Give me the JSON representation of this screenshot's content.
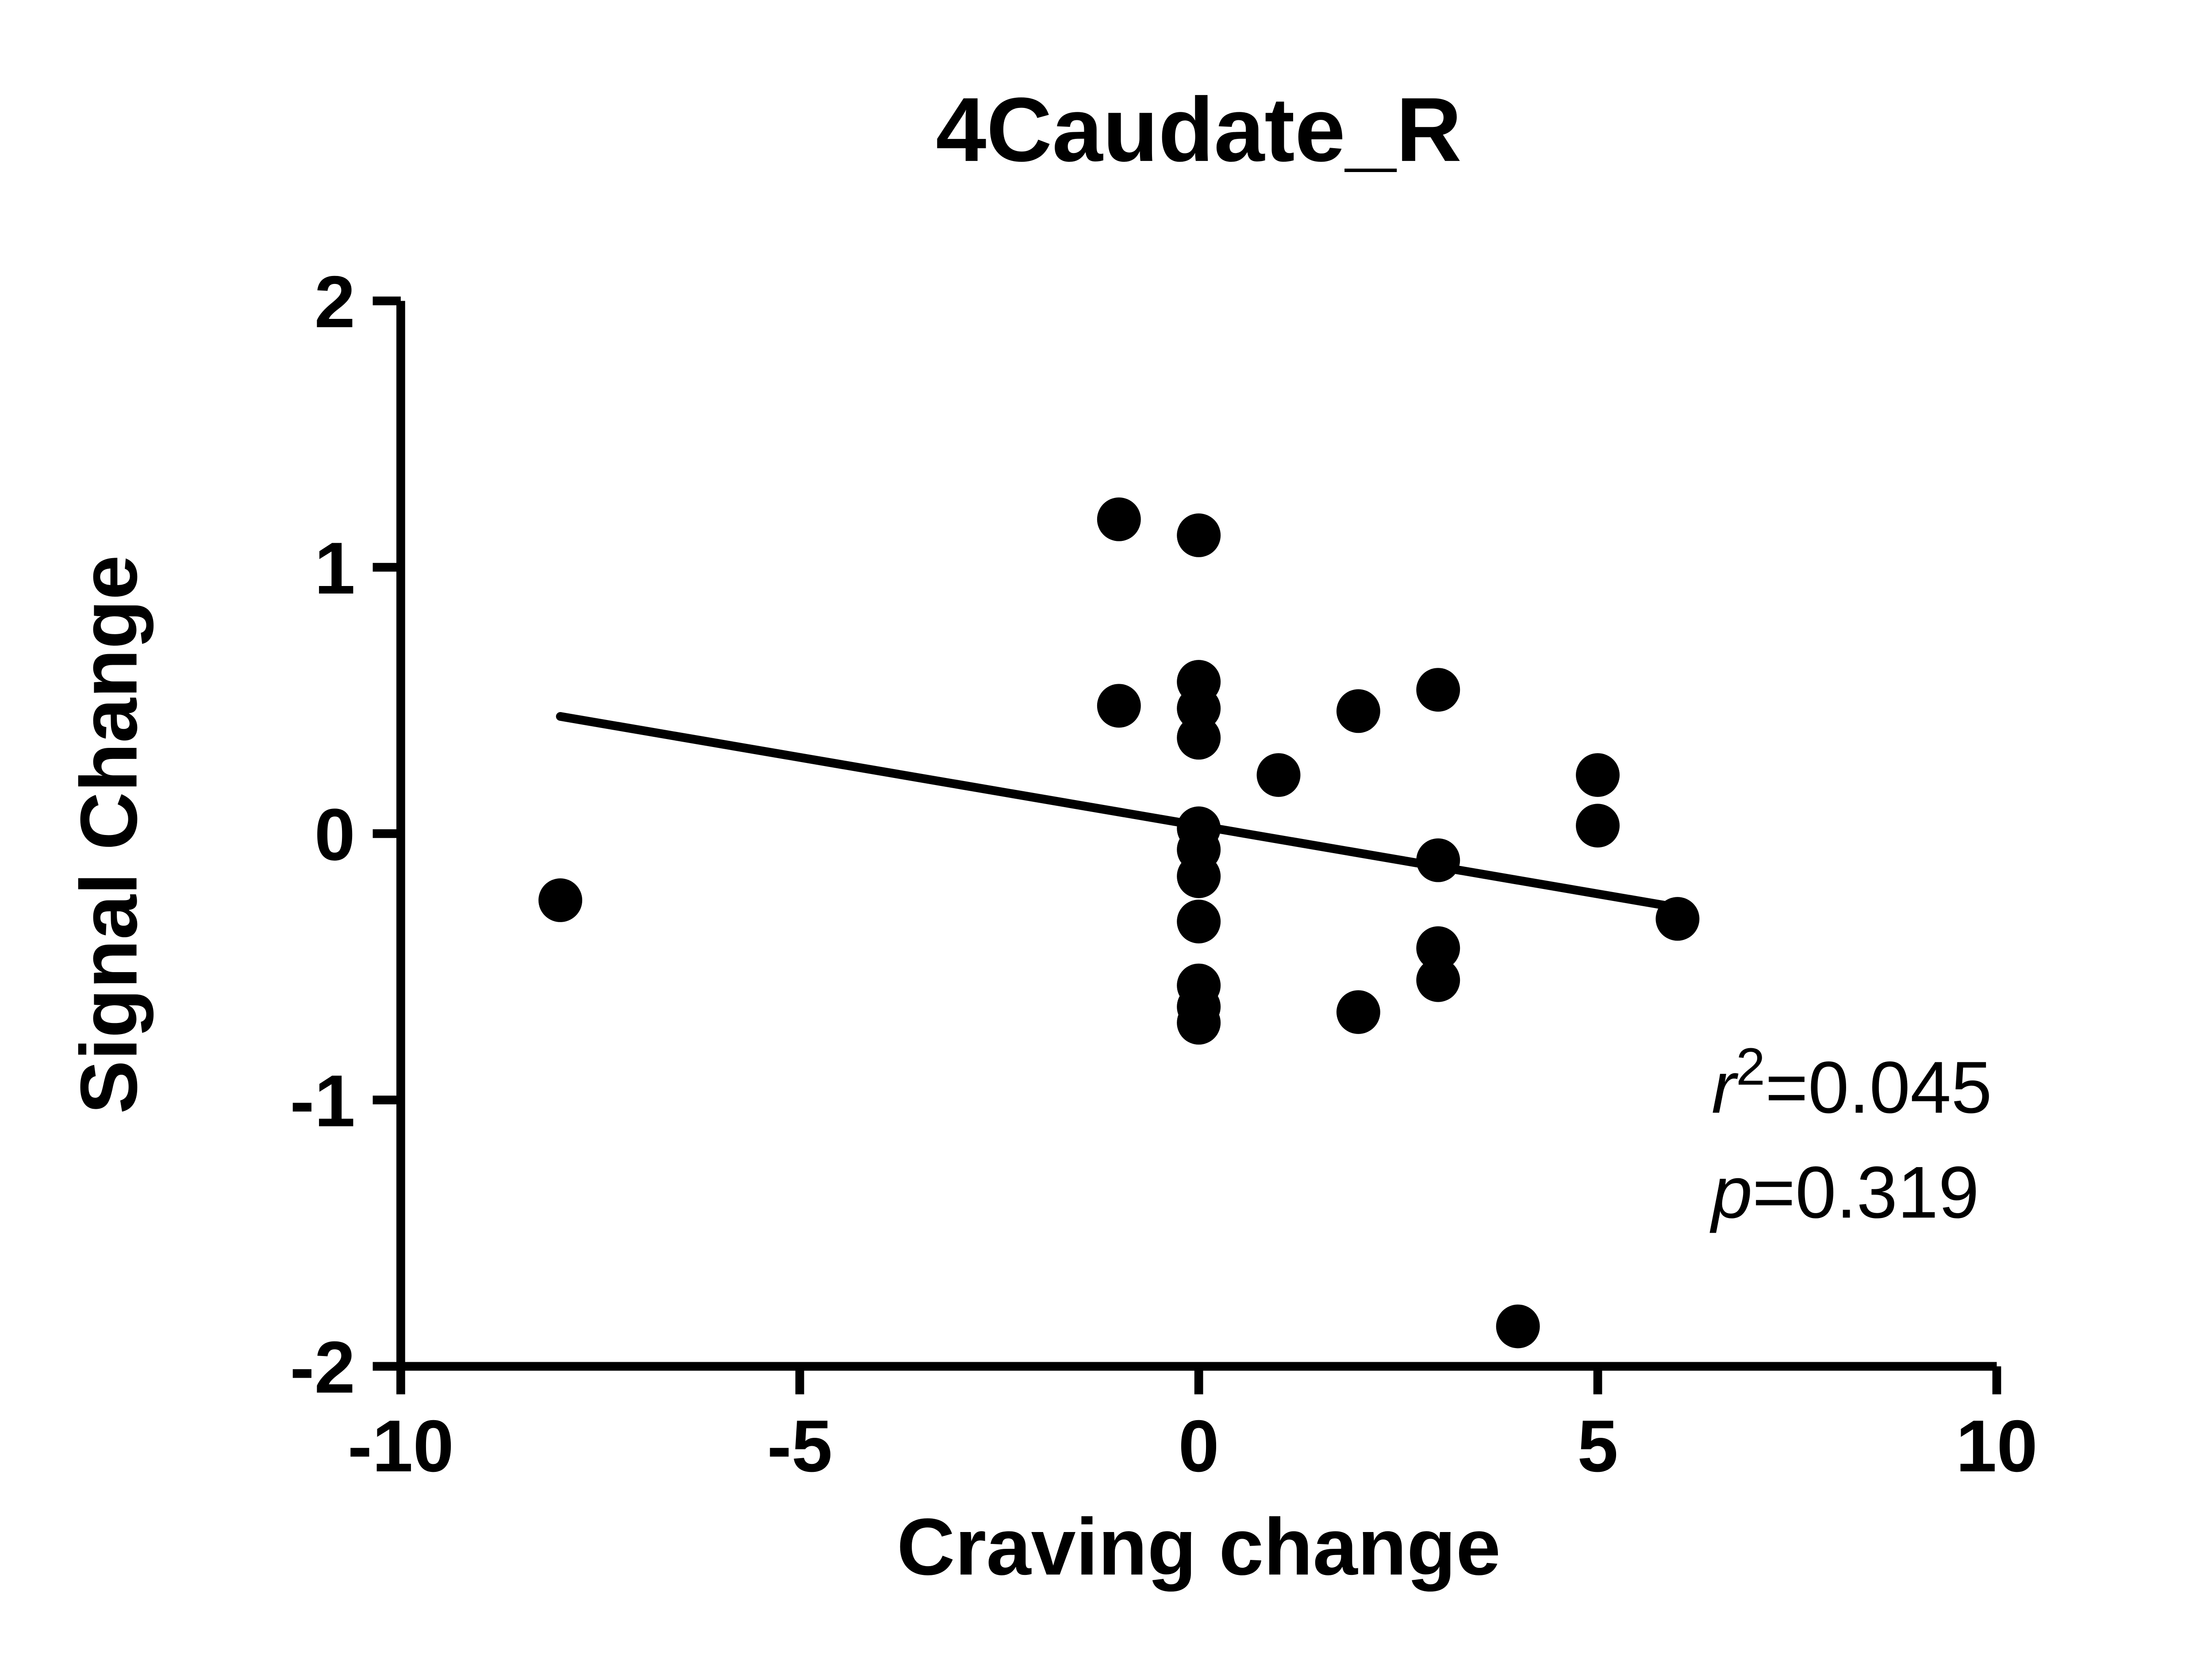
{
  "chart_data": {
    "type": "scatter",
    "title": "4Caudate_R",
    "xlabel": "Craving change",
    "ylabel": "Signal Change",
    "xlim": [
      -10,
      10
    ],
    "ylim": [
      -2,
      2
    ],
    "xticks": [
      -10,
      -5,
      0,
      5,
      10
    ],
    "yticks": [
      -2,
      -1,
      0,
      1,
      2
    ],
    "grid": false,
    "marker_color": "#000000",
    "line_color": "#000000",
    "axis_color": "#000000",
    "points": [
      [
        -8,
        -0.25
      ],
      [
        -1,
        1.18
      ],
      [
        0,
        1.12
      ],
      [
        -1,
        0.48
      ],
      [
        0,
        0.57
      ],
      [
        0,
        0.47
      ],
      [
        0,
        0.36
      ],
      [
        1,
        0.22
      ],
      [
        2,
        0.46
      ],
      [
        3,
        0.54
      ],
      [
        5,
        0.22
      ],
      [
        5,
        0.03
      ],
      [
        0,
        0.02
      ],
      [
        0,
        -0.06
      ],
      [
        0,
        -0.16
      ],
      [
        0,
        -0.33
      ],
      [
        3,
        -0.1
      ],
      [
        3,
        -0.43
      ],
      [
        3,
        -0.55
      ],
      [
        0,
        -0.57
      ],
      [
        0,
        -0.65
      ],
      [
        0,
        -0.71
      ],
      [
        2,
        -0.67
      ],
      [
        6,
        -0.32
      ],
      [
        4,
        -1.85
      ]
    ],
    "fit_line": {
      "x1": -8,
      "y1": 0.44,
      "x2": 6.05,
      "y2": -0.28
    },
    "annotation": {
      "r_label": "r",
      "r_sup": "2",
      "r_eq": "=0.045",
      "p_label": "p",
      "p_eq": "=0.319"
    }
  }
}
